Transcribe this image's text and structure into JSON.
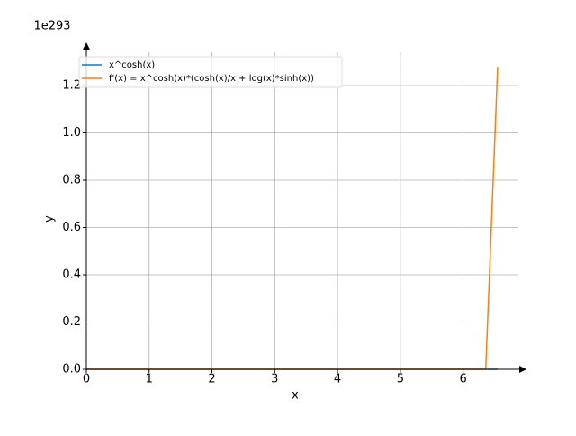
{
  "chart_data": {
    "type": "line",
    "offset_label": "1e293",
    "xlabel": "x",
    "ylabel": "y",
    "x": [
      0,
      1,
      2,
      3,
      4,
      5,
      6,
      6.36,
      6.55
    ],
    "series": [
      {
        "name": "x^cosh(x)",
        "color": "#1f77b4",
        "values": [
          0,
          0,
          0,
          0,
          0,
          0,
          0,
          0,
          0
        ]
      },
      {
        "name": "f'(x) = x^cosh(x)*(cosh(x)/x + log(x)*sinh(x))",
        "color": "#ff7f0e",
        "values": [
          0,
          0,
          0,
          0,
          0,
          0,
          0,
          0,
          1.28
        ]
      }
    ],
    "xlim": [
      0,
      6.88
    ],
    "ylim": [
      0,
      1.37
    ],
    "xticks": [
      0,
      1,
      2,
      3,
      4,
      5,
      6
    ],
    "yticks": [
      {
        "value": 0,
        "label": "0.0"
      },
      0.2,
      0.4,
      0.6,
      0.8,
      {
        "value": 1,
        "label": "1.0"
      },
      1.2
    ],
    "grid": true,
    "legend": "upper-left"
  }
}
